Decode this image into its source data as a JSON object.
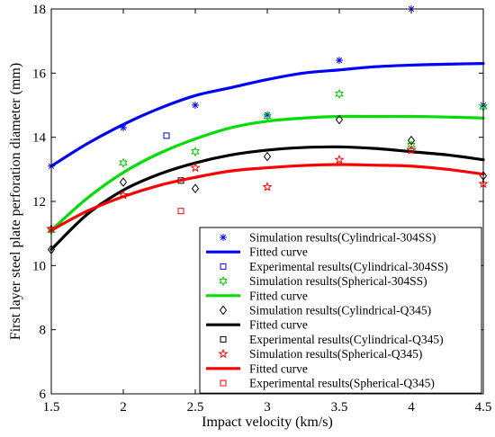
{
  "chart_data": {
    "type": "scatter",
    "xlabel": "Impact velocity (km/s)",
    "ylabel": "First layer steel plate perforation diameter (mm)",
    "xlim": [
      1.5,
      4.5
    ],
    "ylim": [
      6,
      18
    ],
    "xticks": [
      "1.5",
      "2",
      "2.5",
      "3",
      "3.5",
      "4",
      "4.5"
    ],
    "yticks": [
      "6",
      "8",
      "10",
      "12",
      "14",
      "16",
      "18"
    ],
    "xtick_values": [
      1.5,
      2,
      2.5,
      3,
      3.5,
      4,
      4.5
    ],
    "ytick_values": [
      6,
      8,
      10,
      12,
      14,
      16,
      18
    ],
    "grid": false,
    "legend_position": "bottom-right",
    "series": [
      {
        "name": "Simulation results(Cylindrical-304SS)",
        "kind": "points",
        "marker": "asterisk",
        "color": "#0000ff",
        "x": [
          1.5,
          2,
          2.5,
          3,
          3.5,
          4,
          4.5
        ],
        "y": [
          13.1,
          14.3,
          15.0,
          14.7,
          16.4,
          18.0,
          15.0
        ]
      },
      {
        "name": "Fitted curve",
        "kind": "line",
        "color": "#0000ff",
        "x": [
          1.5,
          1.75,
          2,
          2.25,
          2.5,
          2.75,
          3,
          3.25,
          3.5,
          3.75,
          4,
          4.25,
          4.5
        ],
        "y": [
          13.1,
          13.8,
          14.4,
          14.9,
          15.3,
          15.55,
          15.8,
          16.0,
          16.1,
          16.2,
          16.25,
          16.28,
          16.3
        ]
      },
      {
        "name": "Experimental results(Cylindrical-304SS)",
        "kind": "points",
        "marker": "square",
        "color": "#0000ff",
        "x": [
          2.3
        ],
        "y": [
          14.05
        ]
      },
      {
        "name": "Simulation results(Spherical-304SS)",
        "kind": "points",
        "marker": "hexagram",
        "color": "#00cc00",
        "x": [
          1.5,
          2,
          2.5,
          3,
          3.5,
          4,
          4.5
        ],
        "y": [
          11.1,
          13.2,
          13.55,
          14.65,
          15.35,
          13.75,
          14.95
        ]
      },
      {
        "name": "Fitted curve",
        "kind": "line",
        "color": "#00dd00",
        "x": [
          1.5,
          1.75,
          2,
          2.25,
          2.5,
          2.75,
          3,
          3.25,
          3.5,
          3.75,
          4,
          4.25,
          4.5
        ],
        "y": [
          11.1,
          12.1,
          12.9,
          13.5,
          13.95,
          14.3,
          14.5,
          14.6,
          14.65,
          14.65,
          14.65,
          14.63,
          14.6
        ]
      },
      {
        "name": "Simulation results(Cylindrical-Q345)",
        "kind": "points",
        "marker": "diamond",
        "color": "#000000",
        "x": [
          1.5,
          2,
          2.5,
          3,
          3.5,
          4,
          4.5
        ],
        "y": [
          10.5,
          12.6,
          12.4,
          13.4,
          14.55,
          13.9,
          12.8
        ]
      },
      {
        "name": "Fitted curve",
        "kind": "line",
        "color": "#000000",
        "x": [
          1.5,
          1.75,
          2,
          2.25,
          2.5,
          2.75,
          3,
          3.25,
          3.5,
          3.75,
          4,
          4.25,
          4.5
        ],
        "y": [
          10.5,
          11.6,
          12.35,
          12.85,
          13.2,
          13.45,
          13.6,
          13.68,
          13.7,
          13.65,
          13.55,
          13.45,
          13.3
        ]
      },
      {
        "name": "Experimental results(Cylindrical-Q345)",
        "kind": "points",
        "marker": "square",
        "color": "#000000",
        "x": [
          2.4
        ],
        "y": [
          12.65
        ]
      },
      {
        "name": "Simulation results(Spherical-Q345)",
        "kind": "points",
        "marker": "pentagram",
        "color": "#ff0000",
        "x": [
          1.5,
          2,
          2.5,
          3,
          3.5,
          4,
          4.5
        ],
        "y": [
          11.15,
          12.2,
          13.05,
          12.45,
          13.3,
          13.6,
          12.55
        ]
      },
      {
        "name": "Fitted curve",
        "kind": "line",
        "color": "#ff0000",
        "x": [
          1.5,
          1.75,
          2,
          2.25,
          2.5,
          2.75,
          3,
          3.25,
          3.5,
          3.75,
          4,
          4.25,
          4.5
        ],
        "y": [
          11.1,
          11.7,
          12.15,
          12.5,
          12.75,
          12.95,
          13.05,
          13.12,
          13.15,
          13.13,
          13.1,
          13.0,
          12.85
        ]
      },
      {
        "name": "Experimental results(Spherical-Q345)",
        "kind": "points",
        "marker": "square",
        "color": "#ff0000",
        "x": [
          2.4
        ],
        "y": [
          11.7
        ]
      }
    ]
  }
}
